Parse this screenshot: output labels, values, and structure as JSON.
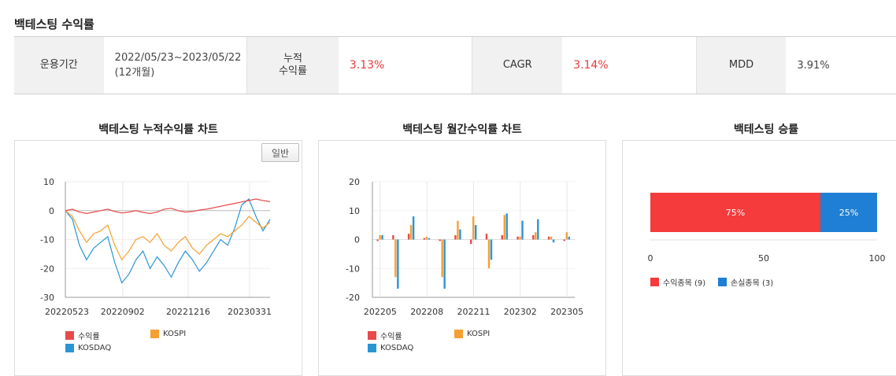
{
  "page_title": "백테스팅 수익률",
  "summary": [
    {
      "label": "운용기간",
      "value_line1": "2022/05/23~2023/05/22",
      "value_line2": "(12개월)"
    },
    {
      "label_line1": "누적",
      "label_line2": "수익률",
      "value": "3.13%"
    },
    {
      "label": "CAGR",
      "value": "3.14%"
    },
    {
      "label": "MDD",
      "value": "3.91%"
    }
  ],
  "charts": {
    "cumulative_title": "백테스팅 누적수익률 차트",
    "monthly_title": "백테스팅 월간수익률 차트",
    "winrate_title": "백테스팅 승률",
    "mode_button": "일반"
  },
  "colors": {
    "returns": "#e84a4a",
    "kospi": "#f5a030",
    "kosdaq": "#2a95d5",
    "win": "#f53b3b",
    "loss": "#1f7fd4"
  },
  "chart_data": [
    {
      "type": "line",
      "x_ticks": [
        "20220523",
        "20220902",
        "20221216",
        "20230331"
      ],
      "y_ticks": [
        "10",
        "0",
        "-10",
        "-20",
        "-30"
      ],
      "ylim": [
        -30,
        10
      ],
      "legend": [
        "수익률",
        "KOSPI",
        "KOSDAQ"
      ],
      "series": [
        {
          "name": "수익률",
          "values": [
            0,
            0.5,
            -0.5,
            -1,
            -0.5,
            0,
            0.5,
            -0.3,
            -0.8,
            -0.5,
            0,
            -0.6,
            -1,
            -0.5,
            0.5,
            0.8,
            0,
            -0.5,
            -0.3,
            0.2,
            0.5,
            1,
            1.5,
            2,
            2.5,
            3,
            3.5,
            4,
            3.5,
            3.1
          ]
        },
        {
          "name": "KOSPI",
          "values": [
            0,
            -2,
            -7,
            -11,
            -8,
            -7,
            -5,
            -12,
            -17,
            -14,
            -10,
            -9,
            -11,
            -8,
            -12,
            -14,
            -11,
            -9,
            -13,
            -15,
            -12,
            -10,
            -8,
            -9,
            -7,
            -5,
            -2,
            -4,
            -6,
            -4
          ]
        },
        {
          "name": "KOSDAQ",
          "values": [
            0,
            -3,
            -12,
            -17,
            -13,
            -11,
            -9,
            -18,
            -25,
            -22,
            -17,
            -14,
            -20,
            -16,
            -19,
            -23,
            -18,
            -14,
            -17,
            -21,
            -18,
            -14,
            -10,
            -12,
            -6,
            2,
            4,
            -2,
            -7,
            -3
          ]
        }
      ]
    },
    {
      "type": "bar",
      "categories": [
        "202205",
        "202206",
        "202207",
        "202208",
        "202209",
        "202210",
        "202211",
        "202212",
        "202301",
        "202302",
        "202303",
        "202304",
        "202305"
      ],
      "tick_labels": [
        "202205",
        "202208",
        "202211",
        "202302",
        "202305"
      ],
      "y_ticks": [
        "20",
        "10",
        "0",
        "-10",
        "-20"
      ],
      "ylim": [
        -20,
        20
      ],
      "legend": [
        "수익률",
        "KOSPI",
        "KOSDAQ"
      ],
      "series": [
        {
          "name": "수익률",
          "values": [
            -0.5,
            1.5,
            2,
            0.5,
            -0.5,
            1.5,
            -1.5,
            2,
            1.5,
            1,
            1.5,
            1,
            -0.5
          ]
        },
        {
          "name": "KOSPI",
          "values": [
            1.5,
            -13,
            5,
            1,
            -13,
            6.5,
            8,
            -10,
            8.5,
            1,
            2.5,
            1,
            2.5
          ]
        },
        {
          "name": "KOSDAQ",
          "values": [
            1.5,
            -17,
            8,
            0.5,
            -17,
            3.5,
            5,
            -7,
            9,
            6.5,
            7,
            -1,
            1
          ]
        }
      ]
    },
    {
      "type": "bar",
      "orientation": "horizontal-stacked",
      "x_ticks": [
        "0",
        "50",
        "100"
      ],
      "xlim": [
        0,
        100
      ],
      "series": [
        {
          "name": "수익종목 (9)",
          "value": 75,
          "label": "75%"
        },
        {
          "name": "손실종목 (3)",
          "value": 25,
          "label": "25%"
        }
      ]
    }
  ]
}
